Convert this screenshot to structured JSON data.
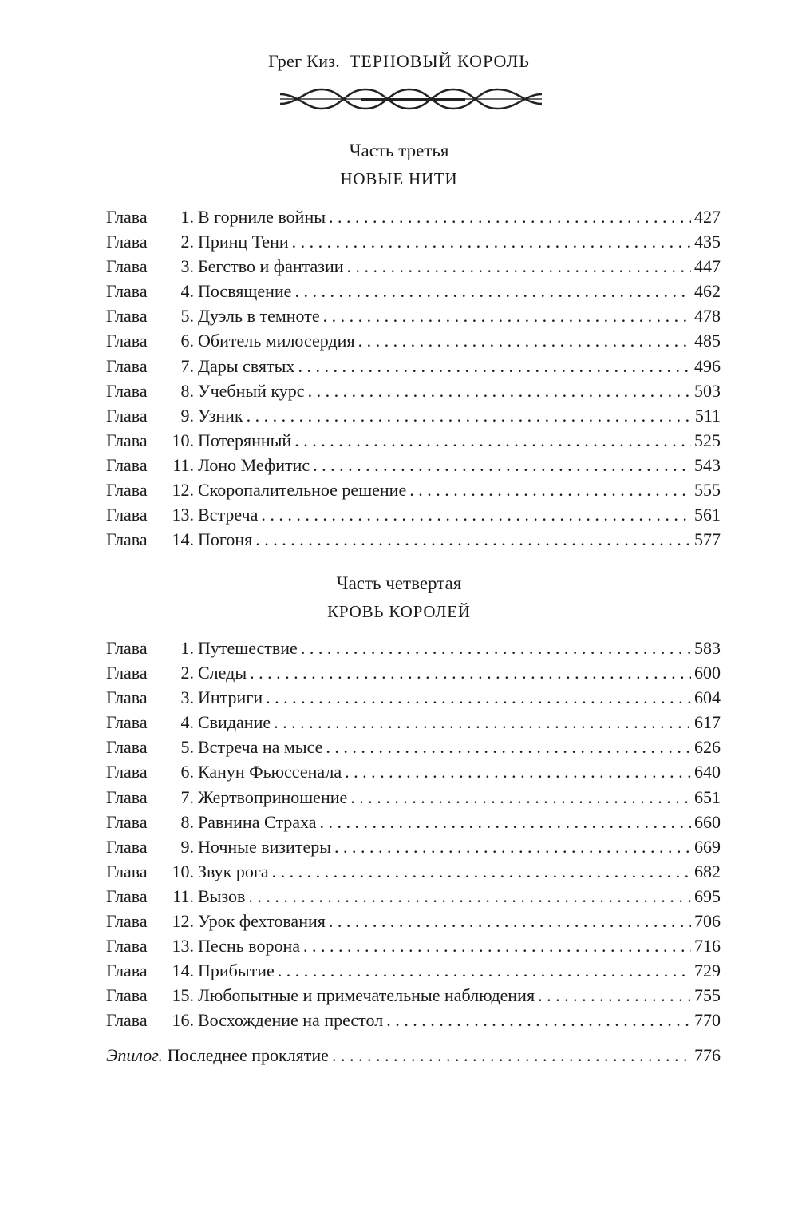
{
  "header": {
    "author": "Грег Киз.",
    "title": "ТЕРНОВЫЙ КОРОЛЬ",
    "ornament_icon": "thorn-vine-ornament"
  },
  "parts": [
    {
      "title": "Часть третья",
      "subtitle": "НОВЫЕ НИТИ",
      "chapters": [
        {
          "label": "Глава",
          "num": "1.",
          "name": "В горниле войны",
          "page": "427"
        },
        {
          "label": "Глава",
          "num": "2.",
          "name": "Принц Тени",
          "page": "435"
        },
        {
          "label": "Глава",
          "num": "3.",
          "name": "Бегство и фантазии",
          "page": "447"
        },
        {
          "label": "Глава",
          "num": "4.",
          "name": "Посвящение",
          "page": "462"
        },
        {
          "label": "Глава",
          "num": "5.",
          "name": "Дуэль в темноте",
          "page": "478"
        },
        {
          "label": "Глава",
          "num": "6.",
          "name": "Обитель милосердия",
          "page": "485"
        },
        {
          "label": "Глава",
          "num": "7.",
          "name": "Дары святых",
          "page": "496"
        },
        {
          "label": "Глава",
          "num": "8.",
          "name": "Учебный курс",
          "page": "503"
        },
        {
          "label": "Глава",
          "num": "9.",
          "name": "Узник",
          "page": "511"
        },
        {
          "label": "Глава",
          "num": "10.",
          "name": "Потерянный",
          "page": "525"
        },
        {
          "label": "Глава",
          "num": "11.",
          "name": "Лоно Мефитис",
          "page": "543"
        },
        {
          "label": "Глава",
          "num": "12.",
          "name": "Скоропалительное решение",
          "page": "555"
        },
        {
          "label": "Глава",
          "num": "13.",
          "name": "Встреча",
          "page": "561"
        },
        {
          "label": "Глава",
          "num": "14.",
          "name": "Погоня",
          "page": "577"
        }
      ]
    },
    {
      "title": "Часть четвертая",
      "subtitle": "КРОВЬ КОРОЛЕЙ",
      "chapters": [
        {
          "label": "Глава",
          "num": "1.",
          "name": "Путешествие",
          "page": "583"
        },
        {
          "label": "Глава",
          "num": "2.",
          "name": "Следы",
          "page": "600"
        },
        {
          "label": "Глава",
          "num": "3.",
          "name": "Интриги",
          "page": "604"
        },
        {
          "label": "Глава",
          "num": "4.",
          "name": "Свидание",
          "page": "617"
        },
        {
          "label": "Глава",
          "num": "5.",
          "name": "Встреча на мысе",
          "page": "626"
        },
        {
          "label": "Глава",
          "num": "6.",
          "name": "Канун Фьюссенала",
          "page": "640"
        },
        {
          "label": "Глава",
          "num": "7.",
          "name": "Жертвоприношение",
          "page": "651"
        },
        {
          "label": "Глава",
          "num": "8.",
          "name": "Равнина Страха",
          "page": "660"
        },
        {
          "label": "Глава",
          "num": "9.",
          "name": "Ночные визитеры",
          "page": "669"
        },
        {
          "label": "Глава",
          "num": "10.",
          "name": "Звук рога",
          "page": "682"
        },
        {
          "label": "Глава",
          "num": "11.",
          "name": "Вызов",
          "page": "695"
        },
        {
          "label": "Глава",
          "num": "12.",
          "name": "Урок фехтования",
          "page": "706"
        },
        {
          "label": "Глава",
          "num": "13.",
          "name": "Песнь ворона",
          "page": "716"
        },
        {
          "label": "Глава",
          "num": "14.",
          "name": "Прибытие",
          "page": "729"
        },
        {
          "label": "Глава",
          "num": "15.",
          "name": "Любопытные и примечательные наблюдения",
          "page": "755"
        },
        {
          "label": "Глава",
          "num": "16.",
          "name": "Восхождение на престол",
          "page": "770"
        }
      ]
    }
  ],
  "epilogue": {
    "label": "Эпилог.",
    "name": "Последнее проклятие",
    "page": "776"
  }
}
